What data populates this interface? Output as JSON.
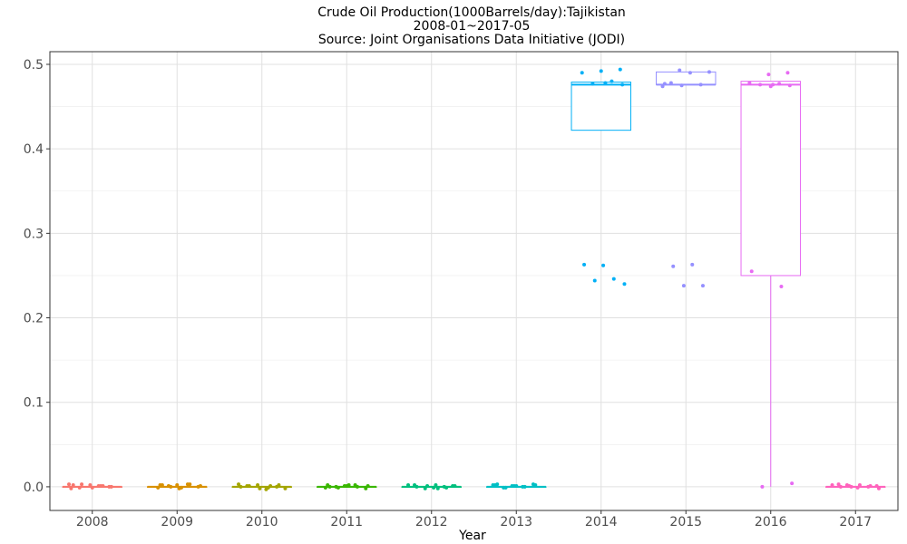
{
  "chart_data": {
    "type": "box",
    "title_lines": [
      "Crude Oil Production(1000Barrels/day):Tajikistan",
      "2008-01~2017-05",
      "Source: Joint Organisations Data Initiative (JODI)"
    ],
    "xlabel": "Year",
    "ylabel": "",
    "ylim": [
      -0.028,
      0.515
    ],
    "yticks": [
      0.0,
      0.1,
      0.2,
      0.3,
      0.4,
      0.5
    ],
    "ytick_labels": [
      "0.0",
      "0.1",
      "0.2",
      "0.3",
      "0.4",
      "0.5"
    ],
    "categories": [
      "2008",
      "2009",
      "2010",
      "2011",
      "2012",
      "2013",
      "2014",
      "2015",
      "2016",
      "2017"
    ],
    "colors": [
      "#F8766D",
      "#D89000",
      "#A3A500",
      "#39B600",
      "#00BF7D",
      "#00BFC4",
      "#00B0F6",
      "#9590FF",
      "#E76BF3",
      "#FF62BC"
    ],
    "boxes": [
      {
        "q1": 0.0,
        "median": 0.0,
        "q3": 0.0,
        "lower": 0.0,
        "upper": 0.0,
        "points": [
          0.003,
          0.001,
          -0.001,
          0.0,
          0.002,
          -0.002,
          0.001,
          0.003,
          0.0,
          -0.001,
          0.002,
          0.001
        ]
      },
      {
        "q1": 0.0,
        "median": 0.0,
        "q3": 0.0,
        "lower": 0.0,
        "upper": 0.0,
        "points": [
          0.002,
          -0.001,
          0.003,
          0.001,
          0.0,
          -0.002,
          0.002,
          0.003,
          0.0,
          0.001,
          -0.001,
          0.002
        ]
      },
      {
        "q1": 0.0,
        "median": 0.0,
        "q3": 0.0,
        "lower": 0.0,
        "upper": 0.0,
        "points": [
          -0.002,
          -0.003,
          0.001,
          0.0,
          0.002,
          0.003,
          -0.001,
          0.001,
          0.002,
          -0.002,
          0.0,
          0.001
        ]
      },
      {
        "q1": 0.0,
        "median": 0.0,
        "q3": 0.0,
        "lower": 0.0,
        "upper": 0.0,
        "points": [
          0.001,
          -0.001,
          0.002,
          0.0,
          -0.002,
          0.001,
          0.002,
          0.0,
          -0.001,
          0.001,
          0.002,
          0.0
        ]
      },
      {
        "q1": 0.0,
        "median": 0.0,
        "q3": 0.0,
        "lower": 0.0,
        "upper": 0.0,
        "points": [
          0.001,
          -0.001,
          0.002,
          0.0,
          -0.002,
          0.001,
          0.002,
          0.0,
          -0.001,
          0.001,
          0.002,
          -0.002
        ]
      },
      {
        "q1": 0.0,
        "median": 0.0,
        "q3": 0.0,
        "lower": 0.0,
        "upper": 0.0,
        "points": [
          0.001,
          0.002,
          0.0,
          -0.001,
          0.003,
          0.001,
          0.002,
          0.0,
          -0.001,
          0.002,
          0.001,
          0.003
        ]
      },
      {
        "q1": 0.422,
        "median": 0.476,
        "q3": 0.479,
        "lower": 0.422,
        "upper": 0.479,
        "points": [
          0.494,
          0.492,
          0.49,
          0.48,
          0.477,
          0.476,
          0.262,
          0.263,
          0.246,
          0.244,
          0.24,
          0.478
        ]
      },
      {
        "q1": 0.476,
        "median": 0.476,
        "q3": 0.491,
        "lower": 0.476,
        "upper": 0.491,
        "points": [
          0.493,
          0.491,
          0.49,
          0.478,
          0.476,
          0.475,
          0.474,
          0.263,
          0.261,
          0.238,
          0.238,
          0.477
        ]
      },
      {
        "q1": 0.25,
        "median": 0.476,
        "q3": 0.48,
        "lower": 0.0,
        "upper": 0.48,
        "points": [
          0.49,
          0.488,
          0.478,
          0.477,
          0.476,
          0.475,
          0.474,
          0.255,
          0.237,
          0.0,
          0.004,
          0.476
        ]
      },
      {
        "q1": 0.0,
        "median": 0.0,
        "q3": 0.0,
        "lower": 0.0,
        "upper": 0.0,
        "points": [
          0.002,
          0.001,
          -0.001,
          0.003,
          0.0,
          0.001,
          -0.002,
          0.002,
          0.0,
          0.001,
          0.0,
          0.002
        ]
      }
    ],
    "grid": true,
    "legend": "none"
  }
}
